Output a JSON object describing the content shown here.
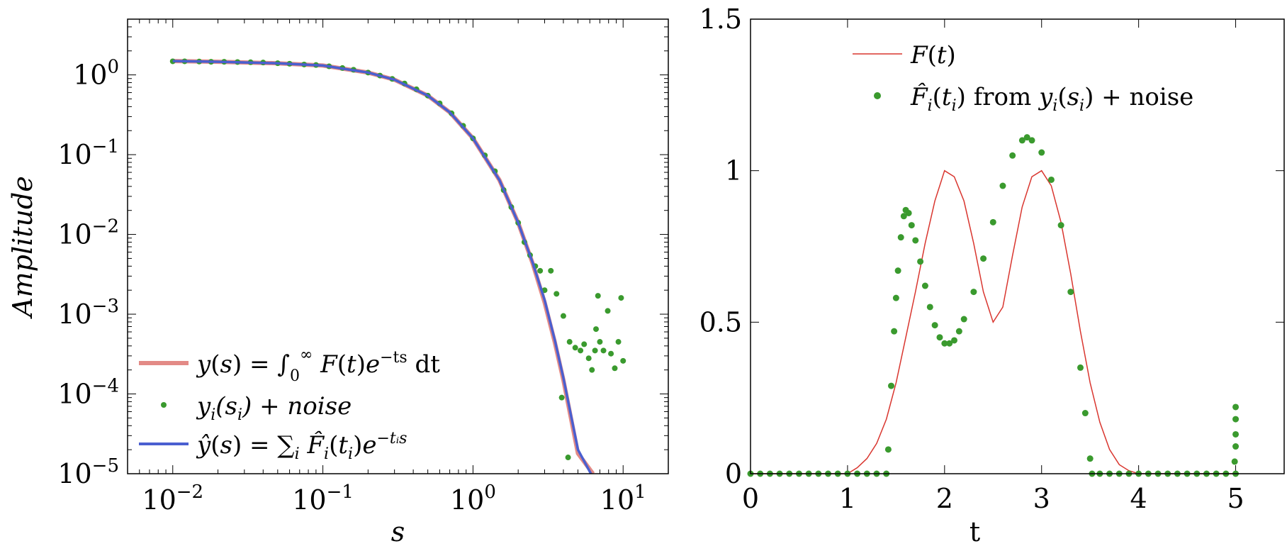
{
  "chart_data": [
    {
      "type": "scatter",
      "xscale": "log",
      "yscale": "log",
      "xlabel": "s",
      "ylabel": "Amplitude",
      "xlim": [
        0.005,
        20
      ],
      "ylim": [
        1e-05,
        5
      ],
      "xticks": [
        0.01,
        0.1,
        1,
        10
      ],
      "yticks": [
        1e-05,
        0.0001,
        0.001,
        0.01,
        0.1,
        1
      ],
      "xtick_labels": [
        {
          "base": "10",
          "exp": "−2"
        },
        {
          "base": "10",
          "exp": "−1"
        },
        {
          "base": "10",
          "exp": "0"
        },
        {
          "base": "10",
          "exp": "1"
        }
      ],
      "ytick_labels": [
        {
          "base": "10",
          "exp": "−5"
        },
        {
          "base": "10",
          "exp": "−4"
        },
        {
          "base": "10",
          "exp": "−3"
        },
        {
          "base": "10",
          "exp": "−2"
        },
        {
          "base": "10",
          "exp": "−1"
        },
        {
          "base": "10",
          "exp": "0"
        }
      ],
      "grid": false,
      "legend_position": "bottom-left",
      "series": [
        {
          "name": "y(s) = ∫₀^∞ F(t)e^(−ts) dt",
          "kind": "line",
          "color": "#e38a86",
          "points": [
            [
              0.01,
              1.49
            ],
            [
              0.02,
              1.46
            ],
            [
              0.05,
              1.4
            ],
            [
              0.1,
              1.31
            ],
            [
              0.2,
              1.07
            ],
            [
              0.3,
              0.87
            ],
            [
              0.5,
              0.55
            ],
            [
              0.7,
              0.34
            ],
            [
              1.0,
              0.16
            ],
            [
              1.5,
              0.048
            ],
            [
              2.0,
              0.014
            ],
            [
              2.5,
              0.0043
            ],
            [
              3.0,
              0.0014
            ],
            [
              3.5,
              0.00045
            ],
            [
              4.0,
              0.00015
            ],
            [
              5.0,
              1.8e-05
            ],
            [
              6.3,
              1e-05
            ]
          ]
        },
        {
          "name": "y_i(s_i) + noise",
          "kind": "scatter",
          "color": "#3a9a2e",
          "points": [
            [
              0.01,
              1.48
            ],
            [
              0.012,
              1.48
            ],
            [
              0.015,
              1.47
            ],
            [
              0.018,
              1.46
            ],
            [
              0.022,
              1.46
            ],
            [
              0.027,
              1.45
            ],
            [
              0.033,
              1.44
            ],
            [
              0.04,
              1.43
            ],
            [
              0.05,
              1.4
            ],
            [
              0.06,
              1.38
            ],
            [
              0.075,
              1.35
            ],
            [
              0.09,
              1.33
            ],
            [
              0.11,
              1.28
            ],
            [
              0.135,
              1.22
            ],
            [
              0.16,
              1.16
            ],
            [
              0.2,
              1.07
            ],
            [
              0.24,
              0.98
            ],
            [
              0.29,
              0.89
            ],
            [
              0.35,
              0.78
            ],
            [
              0.42,
              0.66
            ],
            [
              0.5,
              0.55
            ],
            [
              0.6,
              0.44
            ],
            [
              0.72,
              0.33
            ],
            [
              0.86,
              0.23
            ],
            [
              1.0,
              0.16
            ],
            [
              1.2,
              0.098
            ],
            [
              1.4,
              0.062
            ],
            [
              1.6,
              0.036
            ],
            [
              1.8,
              0.022
            ],
            [
              2.0,
              0.014
            ],
            [
              2.2,
              0.008
            ],
            [
              2.4,
              0.0055
            ],
            [
              2.6,
              0.004
            ],
            [
              2.8,
              0.0035
            ],
            [
              3.0,
              0.002
            ],
            [
              3.3,
              0.0035
            ],
            [
              3.6,
              0.0018
            ],
            [
              4.0,
              0.00095
            ],
            [
              4.4,
              0.00045
            ],
            [
              4.8,
              0.00038
            ],
            [
              5.2,
              0.00035
            ],
            [
              5.5,
              0.00042
            ],
            [
              5.9,
              0.00028
            ],
            [
              6.2,
              0.0002
            ],
            [
              6.5,
              0.00035
            ],
            [
              7.0,
              0.00045
            ],
            [
              7.4,
              0.00035
            ],
            [
              7.9,
              0.0011
            ],
            [
              8.3,
              0.00032
            ],
            [
              8.8,
              0.00021
            ],
            [
              9.3,
              0.00045
            ],
            [
              10.0,
              0.00026
            ],
            [
              4.3,
              1.6e-05
            ],
            [
              3.9,
              9e-05
            ],
            [
              6.8,
              0.0017
            ],
            [
              6.6,
              0.00065
            ],
            [
              9.7,
              0.0016
            ]
          ]
        },
        {
          "name": "ŷ(s) = Σ_i F̂_i(t_i)e^(−t_i s)",
          "kind": "line",
          "color": "#4a5fd0",
          "points": [
            [
              0.01,
              1.49
            ],
            [
              0.02,
              1.46
            ],
            [
              0.05,
              1.4
            ],
            [
              0.1,
              1.31
            ],
            [
              0.2,
              1.07
            ],
            [
              0.3,
              0.87
            ],
            [
              0.5,
              0.55
            ],
            [
              0.7,
              0.34
            ],
            [
              1.0,
              0.16
            ],
            [
              1.5,
              0.048
            ],
            [
              2.0,
              0.014
            ],
            [
              2.5,
              0.0044
            ],
            [
              3.0,
              0.0015
            ],
            [
              3.5,
              0.00048
            ],
            [
              4.0,
              0.00016
            ],
            [
              5.0,
              2e-05
            ],
            [
              6.1,
              1e-05
            ]
          ]
        }
      ]
    },
    {
      "type": "scatter",
      "xlabel": "t",
      "ylabel": "",
      "xlim": [
        0,
        5.5
      ],
      "ylim": [
        0,
        1.5
      ],
      "xticks": [
        0,
        1,
        2,
        3,
        4,
        5
      ],
      "yticks": [
        0,
        0.5,
        1,
        1.5
      ],
      "xtick_labels": [
        "0",
        "1",
        "2",
        "3",
        "4",
        "5"
      ],
      "ytick_labels": [
        "0",
        "0.5",
        "1",
        "1.5"
      ],
      "grid": false,
      "legend_position": "top-center",
      "series": [
        {
          "name": "F(t)",
          "kind": "line",
          "color": "#d9362f",
          "points": [
            [
              0,
              0
            ],
            [
              1.0,
              0
            ],
            [
              1.1,
              0.02
            ],
            [
              1.2,
              0.05
            ],
            [
              1.3,
              0.1
            ],
            [
              1.4,
              0.18
            ],
            [
              1.5,
              0.3
            ],
            [
              1.6,
              0.45
            ],
            [
              1.7,
              0.6
            ],
            [
              1.8,
              0.76
            ],
            [
              1.9,
              0.9
            ],
            [
              2.0,
              1.0
            ],
            [
              2.1,
              0.98
            ],
            [
              2.2,
              0.9
            ],
            [
              2.3,
              0.76
            ],
            [
              2.4,
              0.6
            ],
            [
              2.5,
              0.5
            ],
            [
              2.6,
              0.55
            ],
            [
              2.7,
              0.72
            ],
            [
              2.8,
              0.88
            ],
            [
              2.9,
              0.98
            ],
            [
              3.0,
              1.0
            ],
            [
              3.1,
              0.95
            ],
            [
              3.2,
              0.83
            ],
            [
              3.3,
              0.66
            ],
            [
              3.4,
              0.47
            ],
            [
              3.5,
              0.3
            ],
            [
              3.6,
              0.17
            ],
            [
              3.7,
              0.08
            ],
            [
              3.8,
              0.03
            ],
            [
              3.9,
              0.01
            ],
            [
              4.0,
              0
            ],
            [
              5.0,
              0
            ]
          ]
        },
        {
          "name": "F̂_i(t_i) from y_i(s_i) + noise",
          "kind": "scatter",
          "color": "#3a9a2e",
          "points": [
            [
              0,
              0
            ],
            [
              0.1,
              0
            ],
            [
              0.2,
              0
            ],
            [
              0.3,
              0
            ],
            [
              0.4,
              0
            ],
            [
              0.5,
              0
            ],
            [
              0.6,
              0
            ],
            [
              0.7,
              0
            ],
            [
              0.8,
              0
            ],
            [
              0.9,
              0
            ],
            [
              1.0,
              0
            ],
            [
              1.1,
              0
            ],
            [
              1.2,
              0
            ],
            [
              1.3,
              0
            ],
            [
              1.4,
              0
            ],
            [
              1.42,
              0.08
            ],
            [
              1.45,
              0.29
            ],
            [
              1.48,
              0.47
            ],
            [
              1.5,
              0.58
            ],
            [
              1.52,
              0.67
            ],
            [
              1.55,
              0.78
            ],
            [
              1.58,
              0.85
            ],
            [
              1.6,
              0.87
            ],
            [
              1.63,
              0.86
            ],
            [
              1.66,
              0.82
            ],
            [
              1.7,
              0.77
            ],
            [
              1.75,
              0.7
            ],
            [
              1.8,
              0.62
            ],
            [
              1.85,
              0.55
            ],
            [
              1.9,
              0.49
            ],
            [
              1.95,
              0.45
            ],
            [
              2.0,
              0.43
            ],
            [
              2.05,
              0.43
            ],
            [
              2.1,
              0.44
            ],
            [
              2.15,
              0.47
            ],
            [
              2.2,
              0.51
            ],
            [
              2.3,
              0.6
            ],
            [
              2.4,
              0.71
            ],
            [
              2.5,
              0.83
            ],
            [
              2.6,
              0.95
            ],
            [
              2.7,
              1.05
            ],
            [
              2.8,
              1.1
            ],
            [
              2.85,
              1.11
            ],
            [
              2.9,
              1.1
            ],
            [
              3.0,
              1.06
            ],
            [
              3.1,
              0.97
            ],
            [
              3.2,
              0.82
            ],
            [
              3.3,
              0.6
            ],
            [
              3.4,
              0.35
            ],
            [
              3.45,
              0.2
            ],
            [
              3.5,
              0.05
            ],
            [
              3.52,
              0
            ],
            [
              3.6,
              0
            ],
            [
              3.7,
              0
            ],
            [
              3.8,
              0
            ],
            [
              3.9,
              0
            ],
            [
              4.0,
              0
            ],
            [
              4.1,
              0
            ],
            [
              4.2,
              0
            ],
            [
              4.3,
              0
            ],
            [
              4.4,
              0
            ],
            [
              4.5,
              0
            ],
            [
              4.6,
              0
            ],
            [
              4.7,
              0
            ],
            [
              4.8,
              0
            ],
            [
              4.9,
              0
            ],
            [
              5.0,
              0
            ],
            [
              4.99,
              0.04
            ],
            [
              5.0,
              0.09
            ],
            [
              5.0,
              0.13
            ],
            [
              5.0,
              0.18
            ],
            [
              5.0,
              0.22
            ]
          ]
        }
      ]
    }
  ]
}
